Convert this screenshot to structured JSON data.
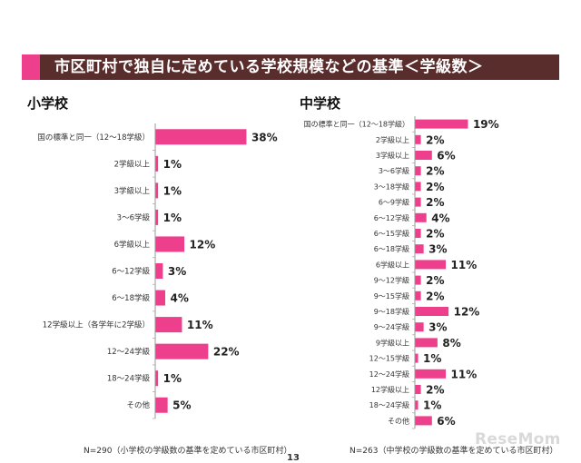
{
  "header": {
    "title": "市区町村で独自に定めている学校規模などの基準＜学級数＞"
  },
  "colors": {
    "bar": "#ee3f8c",
    "header_bg": "#5a2d2d",
    "accent": "#ee3f8c"
  },
  "chart_data": [
    {
      "type": "bar",
      "orientation": "horizontal",
      "title": "小学校",
      "categories": [
        "国の標準と同一（12～18学級）",
        "2学級以上",
        "3学級以上",
        "3～6学級",
        "6学級以上",
        "6～12学級",
        "6～18学級",
        "12学級以上（各学年に2学級）",
        "12～24学級",
        "18～24学級",
        "その他"
      ],
      "values": [
        38,
        1,
        1,
        1,
        12,
        3,
        4,
        11,
        22,
        1,
        5
      ],
      "value_labels": [
        "38%",
        "1%",
        "1%",
        "1%",
        "12%",
        "3%",
        "4%",
        "11%",
        "22%",
        "1%",
        "5%"
      ],
      "note": "N=290（小学校の学級数の基準を定めている市区町村）"
    },
    {
      "type": "bar",
      "orientation": "horizontal",
      "title": "中学校",
      "categories": [
        "国の標準と同一（12～18学級）",
        "2学級以上",
        "3学級以上",
        "3～6学級",
        "3～18学級",
        "6～9学級",
        "6～12学級",
        "6～15学級",
        "6～18学級",
        "6学級以上",
        "9～12学級",
        "9～15学級",
        "9～18学級",
        "9～24学級",
        "9学級以上",
        "12～15学級",
        "12～24学級",
        "12学級以上",
        "18～24学級",
        "その他"
      ],
      "values": [
        19,
        2,
        6,
        2,
        2,
        2,
        4,
        2,
        3,
        11,
        2,
        2,
        12,
        3,
        8,
        1,
        11,
        2,
        1,
        6
      ],
      "value_labels": [
        "19%",
        "2%",
        "6%",
        "2%",
        "2%",
        "2%",
        "4%",
        "2%",
        "3%",
        "11%",
        "2%",
        "2%",
        "12%",
        "3%",
        "8%",
        "1%",
        "11%",
        "2%",
        "1%",
        "6%"
      ],
      "note": "N=263（中学校の学級数の基準を定めている市区町村）"
    }
  ],
  "footer": {
    "page_number": "13",
    "logo": "ReseMom"
  }
}
